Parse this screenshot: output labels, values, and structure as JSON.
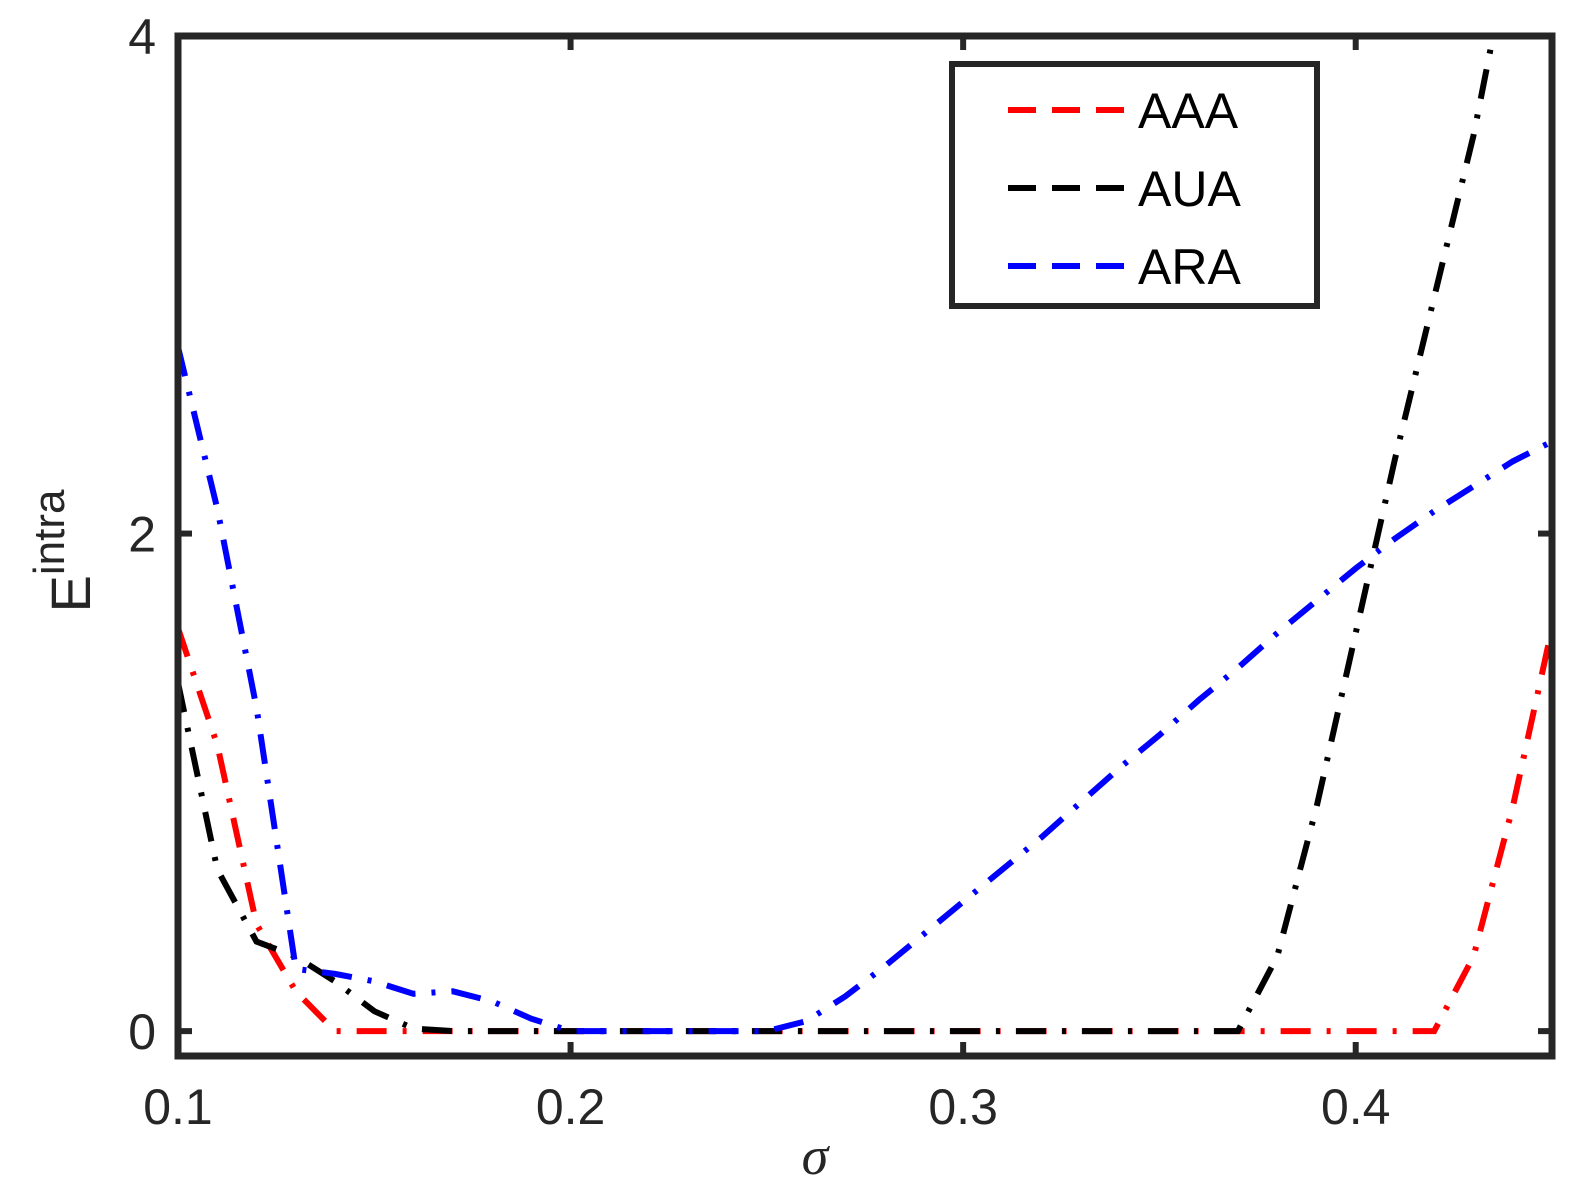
{
  "chart_data": {
    "type": "line",
    "title": "",
    "xlabel": "σ",
    "ylabel": {
      "base": "E",
      "superscript": "intra"
    },
    "xlim": [
      0.1,
      0.45
    ],
    "ylim": [
      -0.1,
      4
    ],
    "xticks": [
      0.1,
      0.2,
      0.3,
      0.4
    ],
    "xtick_labels": [
      "0.1",
      "0.2",
      "0.3",
      "0.4"
    ],
    "yticks": [
      0,
      2,
      4
    ],
    "ytick_labels": [
      "0",
      "2",
      "4"
    ],
    "grid": false,
    "legend_position": "top-right",
    "series": [
      {
        "name": "AAA",
        "color": "#ff0000",
        "x": [
          0.1,
          0.11,
          0.12,
          0.13,
          0.14,
          0.15,
          0.16,
          0.17,
          0.18,
          0.19,
          0.2,
          0.21,
          0.22,
          0.23,
          0.24,
          0.25,
          0.26,
          0.27,
          0.28,
          0.29,
          0.3,
          0.31,
          0.32,
          0.33,
          0.34,
          0.35,
          0.36,
          0.37,
          0.38,
          0.39,
          0.4,
          0.41,
          0.42,
          0.43,
          0.44,
          0.45
        ],
        "y": [
          1.62,
          1.15,
          0.43,
          0.16,
          0,
          0,
          0,
          0,
          0,
          0,
          0,
          0,
          0,
          0,
          0,
          0,
          0,
          0,
          0,
          0,
          0,
          0,
          0,
          0,
          0,
          0,
          0,
          0,
          0,
          0,
          0,
          0,
          0,
          0.3,
          0.9,
          1.62
        ]
      },
      {
        "name": "AUA",
        "color": "#000000",
        "x": [
          0.1,
          0.11,
          0.12,
          0.13,
          0.14,
          0.15,
          0.16,
          0.17,
          0.18,
          0.19,
          0.2,
          0.21,
          0.22,
          0.23,
          0.24,
          0.25,
          0.26,
          0.27,
          0.28,
          0.29,
          0.3,
          0.31,
          0.32,
          0.33,
          0.34,
          0.35,
          0.36,
          0.37,
          0.38,
          0.39,
          0.4,
          0.41,
          0.42,
          0.43,
          0.435
        ],
        "y": [
          1.4,
          0.65,
          0.36,
          0.3,
          0.2,
          0.08,
          0.01,
          0,
          0,
          0,
          0,
          0,
          0,
          0,
          0,
          0,
          0,
          0,
          0,
          0,
          0,
          0,
          0,
          0,
          0,
          0,
          0,
          0,
          0.3,
          0.9,
          1.6,
          2.3,
          2.95,
          3.6,
          4.0
        ]
      },
      {
        "name": "ARA",
        "color": "#0000ff",
        "x": [
          0.1,
          0.11,
          0.12,
          0.13,
          0.14,
          0.15,
          0.16,
          0.17,
          0.18,
          0.19,
          0.2,
          0.21,
          0.22,
          0.23,
          0.24,
          0.25,
          0.26,
          0.27,
          0.28,
          0.29,
          0.3,
          0.31,
          0.32,
          0.33,
          0.34,
          0.35,
          0.36,
          0.37,
          0.38,
          0.39,
          0.4,
          0.41,
          0.42,
          0.43,
          0.44,
          0.45
        ],
        "y": [
          2.75,
          2.1,
          1.3,
          0.25,
          0.23,
          0.2,
          0.15,
          0.16,
          0.12,
          0.05,
          0,
          0,
          0,
          0,
          0,
          0,
          0.04,
          0.14,
          0.26,
          0.39,
          0.52,
          0.65,
          0.78,
          0.92,
          1.06,
          1.19,
          1.33,
          1.46,
          1.6,
          1.73,
          1.86,
          1.98,
          2.09,
          2.19,
          2.29,
          2.37
        ]
      }
    ]
  }
}
